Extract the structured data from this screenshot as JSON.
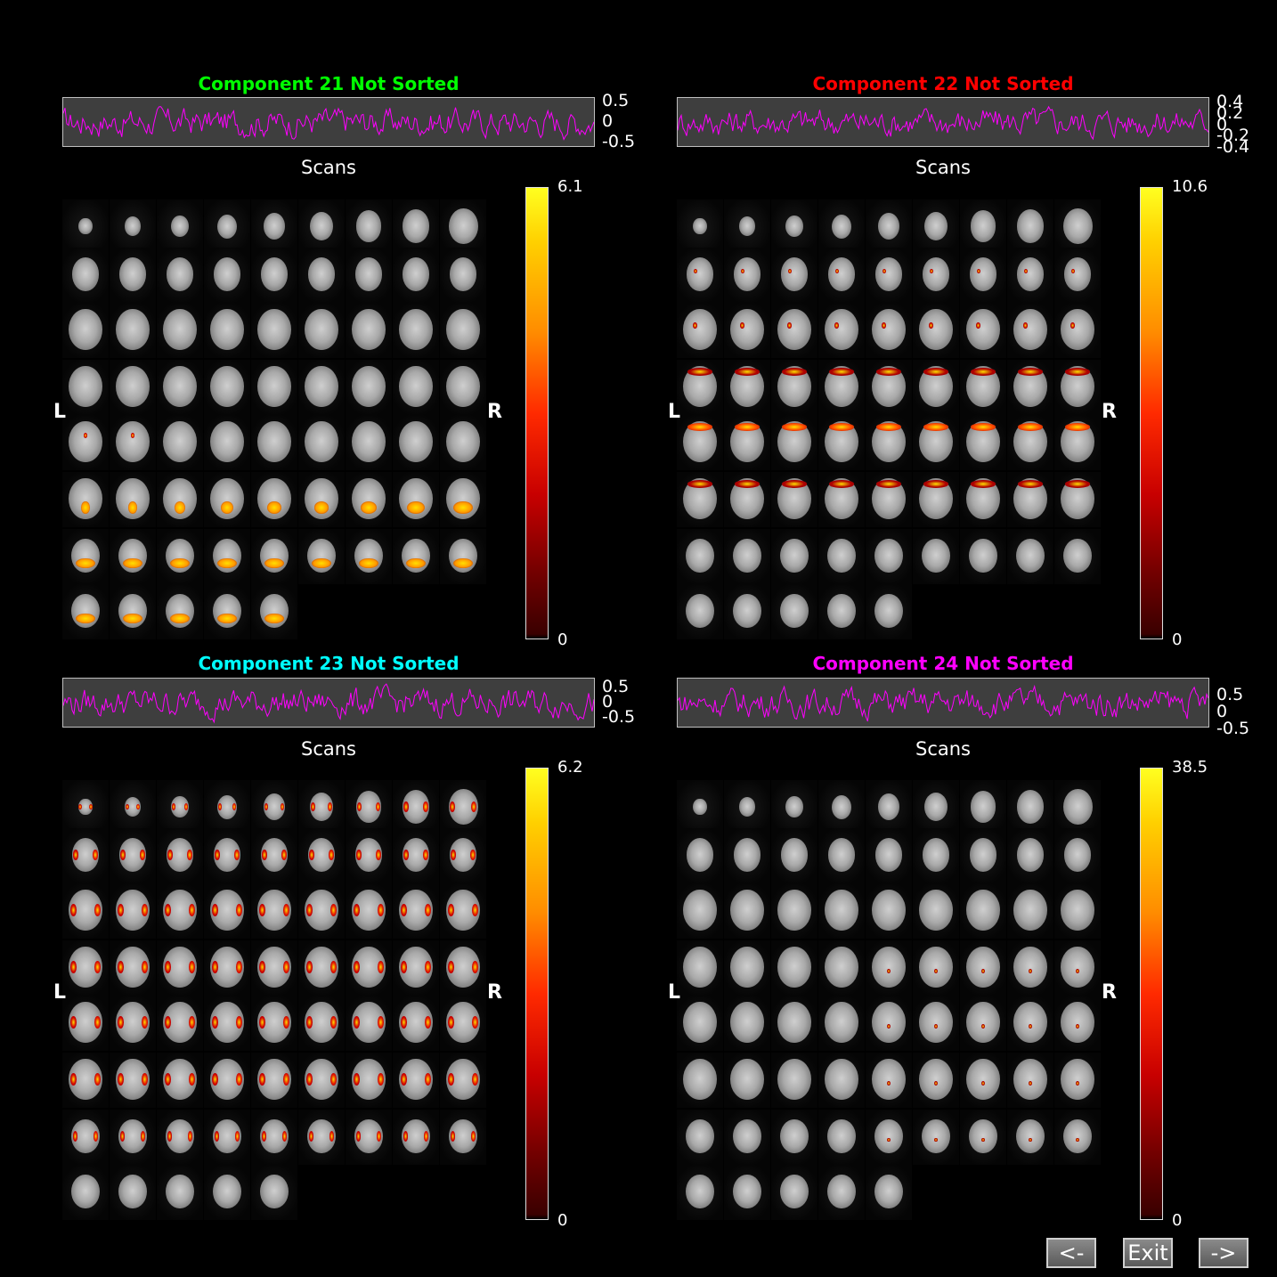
{
  "colors": {
    "trace": "#ff00ff",
    "bg": "#000000",
    "plot_bg": "#3e3e3e"
  },
  "side_labels": {
    "left": "L",
    "right": "R"
  },
  "components": [
    {
      "title": "Component 21 Not Sorted",
      "title_color": "#00ff00",
      "yticks": [
        "0.5",
        "0",
        "-0.5"
      ],
      "xlabel": "Scans",
      "colorbar": {
        "max": "6.1",
        "min": "0"
      }
    },
    {
      "title": "Component 22 Not Sorted",
      "title_color": "#ff0000",
      "yticks": [
        "0.4",
        "0.2",
        "0",
        "-0.2",
        "-0.4"
      ],
      "xlabel": "Scans",
      "colorbar": {
        "max": "10.6",
        "min": "0"
      }
    },
    {
      "title": "Component 23 Not Sorted",
      "title_color": "#00ffff",
      "yticks": [
        "0.5",
        "0",
        "-0.5"
      ],
      "xlabel": "Scans",
      "colorbar": {
        "max": "6.2",
        "min": "0"
      }
    },
    {
      "title": "Component 24 Not Sorted",
      "title_color": "#ff00ff",
      "yticks": [
        "0.5",
        "0",
        "-0.5"
      ],
      "xlabel": "Scans",
      "colorbar": {
        "max": "38.5",
        "min": "0"
      }
    }
  ],
  "buttons": {
    "prev": "<-",
    "exit": "Exit",
    "next": "->"
  }
}
